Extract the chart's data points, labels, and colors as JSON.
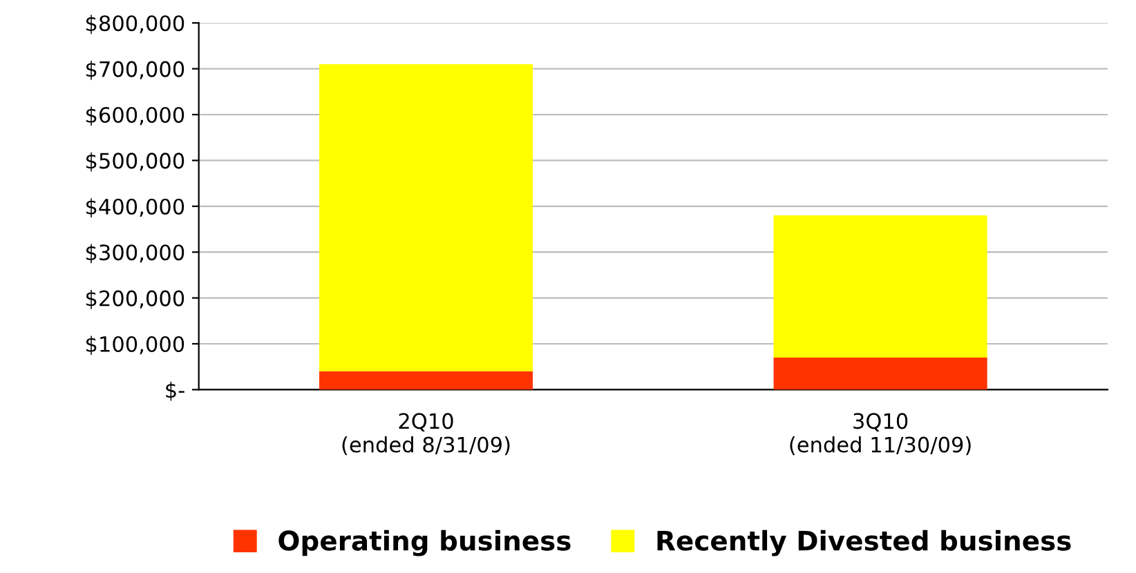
{
  "chart_data": {
    "type": "bar",
    "stacked": true,
    "categories": [
      "2Q10\n(ended 8/31/09)",
      "3Q10\n(ended 11/30/09)"
    ],
    "series": [
      {
        "name": "Operating business",
        "color": "#ff3300",
        "values": [
          40000,
          70000
        ]
      },
      {
        "name": "Recently Divested business",
        "color": "#ffff00",
        "values": [
          670000,
          310000
        ]
      }
    ],
    "ylim": [
      0,
      800000
    ],
    "yticks": [
      {
        "value": 0,
        "label": "$-"
      },
      {
        "value": 100000,
        "label": "$100,000"
      },
      {
        "value": 200000,
        "label": "$200,000"
      },
      {
        "value": 300000,
        "label": "$300,000"
      },
      {
        "value": 400000,
        "label": "$400,000"
      },
      {
        "value": 500000,
        "label": "$500,000"
      },
      {
        "value": 600000,
        "label": "$600,000"
      },
      {
        "value": 700000,
        "label": "$700,000"
      },
      {
        "value": 800000,
        "label": "$800,000"
      }
    ],
    "grid": "y",
    "legend": "bottom"
  }
}
